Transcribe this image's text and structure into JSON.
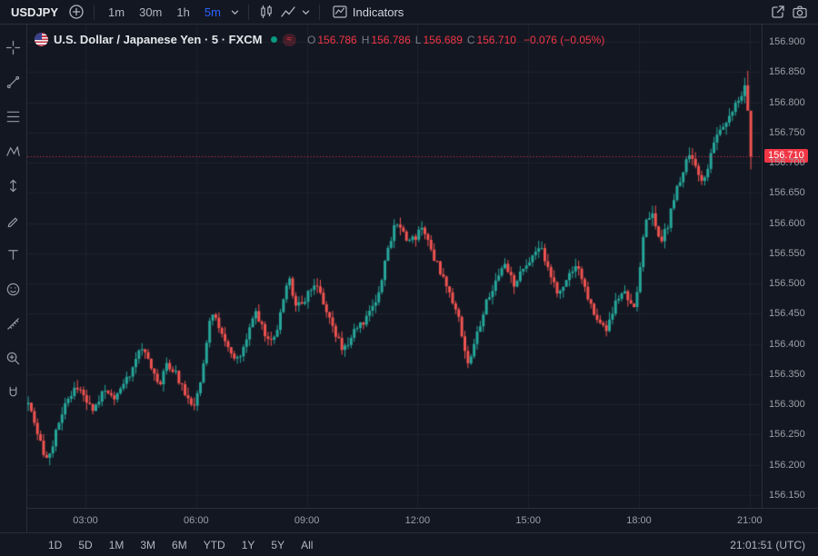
{
  "top_toolbar": {
    "symbol": "USDJPY",
    "timeframes": [
      {
        "label": "1m",
        "active": false
      },
      {
        "label": "30m",
        "active": false
      },
      {
        "label": "1h",
        "active": false
      },
      {
        "label": "5m",
        "active": true
      }
    ],
    "indicators_label": "Indicators"
  },
  "left_toolbar": {
    "tools": [
      "crosshair",
      "trend-line",
      "fib-retracement",
      "xabcd-pattern",
      "projection",
      "brush",
      "text",
      "emoji",
      "measure",
      "zoom-in",
      "magnet"
    ]
  },
  "legend": {
    "title": "U.S. Dollar / Japanese Yen · 5 · FXCM",
    "status_badge": "≈",
    "ohlc": [
      {
        "k": "O",
        "v": "156.786"
      },
      {
        "k": "H",
        "v": "156.786"
      },
      {
        "k": "L",
        "v": "156.689"
      },
      {
        "k": "C",
        "v": "156.710"
      }
    ],
    "change": "−0.076 (−0.05%)"
  },
  "price_axis": {
    "labels": [
      "156.900",
      "156.850",
      "156.800",
      "156.750",
      "156.700",
      "156.650",
      "156.600",
      "156.550",
      "156.500",
      "156.450",
      "156.400",
      "156.350",
      "156.300",
      "156.250",
      "156.200",
      "156.150"
    ],
    "last_price": "156.710"
  },
  "time_axis": {
    "labels": [
      "03:00",
      "06:00",
      "09:00",
      "12:00",
      "15:00",
      "18:00",
      "21:00"
    ]
  },
  "bottom_bar": {
    "ranges": [
      "1D",
      "5D",
      "1M",
      "3M",
      "6M",
      "YTD",
      "1Y",
      "5Y",
      "All"
    ],
    "clock": "21:01:51 (UTC)"
  },
  "colors": {
    "up": "#26a69a",
    "down": "#ef5350",
    "last_price": "#f23645",
    "accent": "#2962ff",
    "grid": "#1e222d",
    "background": "#131722"
  },
  "chart_data": {
    "type": "candlestick",
    "symbol": "USDJPY",
    "interval_minutes": 5,
    "ylim": [
      156.133,
      156.929
    ],
    "time_start": 1.45,
    "time_end": 21.08,
    "session_high": 156.852,
    "session_low": 156.196,
    "last_candle": {
      "o": 156.786,
      "h": 156.786,
      "l": 156.689,
      "c": 156.71
    },
    "anchors": [
      [
        1.45,
        156.3
      ],
      [
        1.7,
        156.25
      ],
      [
        1.95,
        156.21
      ],
      [
        2.1,
        156.23
      ],
      [
        2.3,
        156.28
      ],
      [
        2.55,
        156.31
      ],
      [
        2.8,
        156.33
      ],
      [
        3.0,
        156.31
      ],
      [
        3.25,
        156.29
      ],
      [
        3.5,
        156.33
      ],
      [
        3.75,
        156.31
      ],
      [
        4.0,
        156.33
      ],
      [
        4.3,
        156.36
      ],
      [
        4.55,
        156.4
      ],
      [
        4.8,
        156.36
      ],
      [
        5.0,
        156.33
      ],
      [
        5.2,
        156.37
      ],
      [
        5.45,
        156.35
      ],
      [
        5.7,
        156.32
      ],
      [
        5.95,
        156.3
      ],
      [
        6.15,
        156.35
      ],
      [
        6.4,
        156.46
      ],
      [
        6.6,
        156.43
      ],
      [
        6.9,
        156.39
      ],
      [
        7.1,
        156.37
      ],
      [
        7.35,
        156.41
      ],
      [
        7.6,
        156.45
      ],
      [
        7.85,
        156.42
      ],
      [
        8.05,
        156.4
      ],
      [
        8.3,
        156.45
      ],
      [
        8.5,
        156.51
      ],
      [
        8.75,
        156.46
      ],
      [
        9.0,
        156.48
      ],
      [
        9.25,
        156.5
      ],
      [
        9.5,
        156.46
      ],
      [
        9.75,
        156.42
      ],
      [
        10.0,
        156.39
      ],
      [
        10.3,
        156.42
      ],
      [
        10.6,
        156.44
      ],
      [
        10.9,
        156.48
      ],
      [
        11.15,
        156.54
      ],
      [
        11.4,
        156.61
      ],
      [
        11.65,
        156.58
      ],
      [
        11.9,
        156.57
      ],
      [
        12.1,
        156.59
      ],
      [
        12.35,
        156.56
      ],
      [
        12.6,
        156.52
      ],
      [
        12.85,
        156.49
      ],
      [
        13.1,
        156.45
      ],
      [
        13.35,
        156.36
      ],
      [
        13.6,
        156.41
      ],
      [
        13.85,
        156.47
      ],
      [
        14.1,
        156.5
      ],
      [
        14.35,
        156.53
      ],
      [
        14.6,
        156.5
      ],
      [
        14.85,
        156.52
      ],
      [
        15.1,
        156.54
      ],
      [
        15.35,
        156.56
      ],
      [
        15.6,
        156.51
      ],
      [
        15.85,
        156.48
      ],
      [
        16.1,
        156.51
      ],
      [
        16.35,
        156.53
      ],
      [
        16.6,
        156.48
      ],
      [
        16.85,
        156.44
      ],
      [
        17.1,
        156.42
      ],
      [
        17.35,
        156.47
      ],
      [
        17.6,
        156.49
      ],
      [
        17.85,
        156.45
      ],
      [
        18.0,
        156.51
      ],
      [
        18.15,
        156.6
      ],
      [
        18.35,
        156.62
      ],
      [
        18.55,
        156.57
      ],
      [
        18.75,
        156.59
      ],
      [
        18.95,
        156.64
      ],
      [
        19.15,
        156.68
      ],
      [
        19.35,
        156.71
      ],
      [
        19.55,
        156.69
      ],
      [
        19.75,
        156.67
      ],
      [
        19.95,
        156.71
      ],
      [
        20.15,
        156.75
      ],
      [
        20.35,
        156.77
      ],
      [
        20.55,
        156.79
      ],
      [
        20.75,
        156.81
      ],
      [
        20.95,
        156.84
      ],
      [
        21.08,
        156.71
      ]
    ]
  }
}
